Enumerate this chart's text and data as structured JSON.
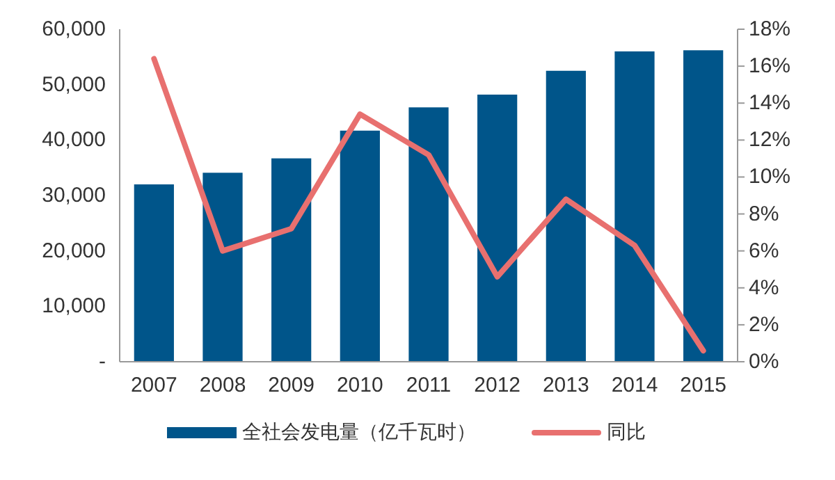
{
  "chart_data": {
    "type": "bar",
    "categories": [
      "2007",
      "2008",
      "2009",
      "2010",
      "2011",
      "2012",
      "2013",
      "2014",
      "2015"
    ],
    "series": [
      {
        "name": "全社会发电量（亿千瓦时）",
        "color": "#00558a",
        "values": [
          32000,
          34100,
          36700,
          41700,
          45900,
          48200,
          52500,
          56000,
          56200
        ]
      },
      {
        "name": "同比",
        "type": "line",
        "axis": "y2",
        "color": "#e8706f",
        "values": [
          16.4,
          6.0,
          7.2,
          13.4,
          11.2,
          4.6,
          8.8,
          6.3,
          0.6
        ]
      }
    ],
    "ylim": [
      0,
      60000
    ],
    "yticks": [
      {
        "value": 0,
        "label": "-"
      },
      {
        "value": 10000,
        "label": "10,000"
      },
      {
        "value": 20000,
        "label": "20,000"
      },
      {
        "value": 30000,
        "label": "30,000"
      },
      {
        "value": 40000,
        "label": "40,000"
      },
      {
        "value": 50000,
        "label": "50,000"
      },
      {
        "value": 60000,
        "label": "60,000"
      }
    ],
    "y2lim": [
      0,
      18
    ],
    "y2ticks": [
      {
        "value": 0,
        "label": "0%"
      },
      {
        "value": 2,
        "label": "2%"
      },
      {
        "value": 4,
        "label": "4%"
      },
      {
        "value": 6,
        "label": "6%"
      },
      {
        "value": 8,
        "label": "8%"
      },
      {
        "value": 10,
        "label": "10%"
      },
      {
        "value": 12,
        "label": "12%"
      },
      {
        "value": 14,
        "label": "14%"
      },
      {
        "value": 16,
        "label": "16%"
      },
      {
        "value": 18,
        "label": "18%"
      }
    ],
    "legend": "bottom",
    "grid": false,
    "marker": "none",
    "line_style": "solid"
  }
}
